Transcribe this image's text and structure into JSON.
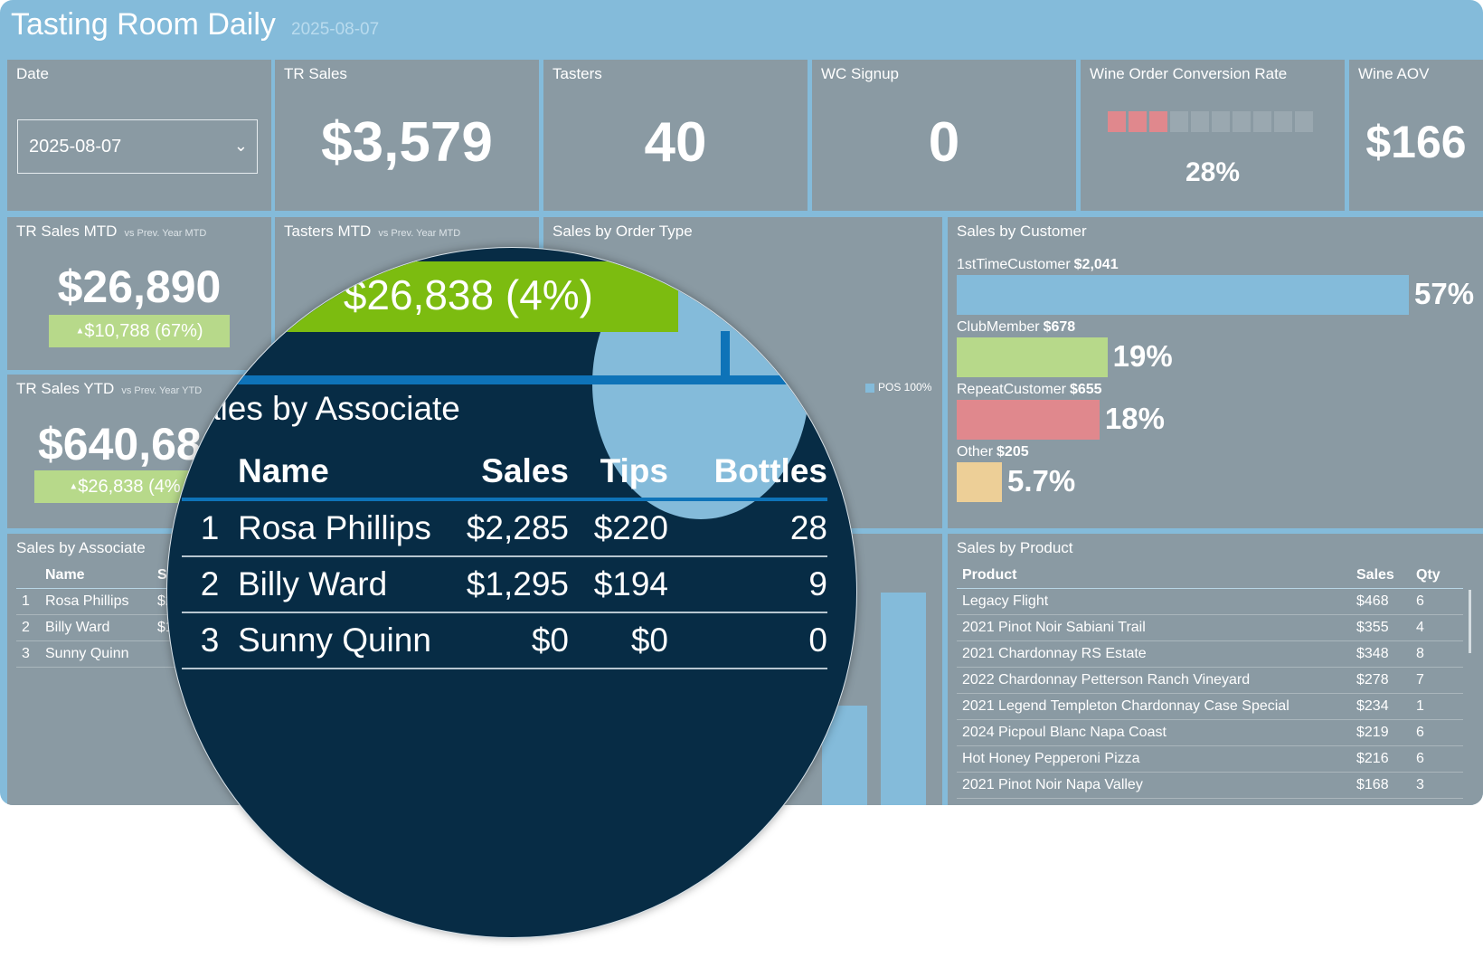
{
  "header": {
    "title": "Tasting Room Daily",
    "date": "2025-08-07"
  },
  "kpis": {
    "date": {
      "title": "Date",
      "value": "2025-08-07"
    },
    "tr_sales": {
      "title": "TR Sales",
      "value": "$3,579"
    },
    "tasters": {
      "title": "Tasters",
      "value": "40"
    },
    "wc_signup": {
      "title": "WC Signup",
      "value": "0"
    },
    "conversion": {
      "title": "Wine Order Conversion Rate",
      "value": "28%",
      "fraction": 0.28,
      "segments": 10,
      "filled": 3
    },
    "aov": {
      "title": "Wine AOV",
      "value": "$166"
    }
  },
  "mtd": {
    "sales": {
      "title": "TR Sales MTD",
      "subtitle": "vs Prev. Year MTD",
      "value": "$26,890",
      "delta": "$10,788 (67%)"
    },
    "tasters": {
      "title": "Tasters MTD",
      "subtitle": "vs Prev. Year MTD"
    }
  },
  "ytd": {
    "title": "TR Sales YTD",
    "subtitle": "vs Prev. Year YTD",
    "value": "$640,68",
    "delta": "$26,838 (4%"
  },
  "order_type": {
    "title": "Sales by Order Type",
    "legend": "POS 100%"
  },
  "customer": {
    "title": "Sales by Customer",
    "items": [
      {
        "name": "1stTimeCustomer",
        "amount": "$2,041",
        "pct": "57%",
        "color": "#84bbda"
      },
      {
        "name": "ClubMember",
        "amount": "$678",
        "pct": "19%",
        "color": "#b7d98a"
      },
      {
        "name": "RepeatCustomer",
        "amount": "$655",
        "pct": "18%",
        "color": "#e0888d"
      },
      {
        "name": "Other",
        "amount": "$205",
        "pct": "5.7%",
        "color": "#edcf97"
      }
    ]
  },
  "associate": {
    "title": "Sales by Associate",
    "col_name": "Name",
    "col_sales": "Sa",
    "rows": [
      {
        "rank": "1",
        "name": "Rosa Phillips",
        "sales": "$2"
      },
      {
        "rank": "2",
        "name": "Billy Ward",
        "sales": "$1"
      },
      {
        "rank": "3",
        "name": "Sunny Quinn",
        "sales": ""
      }
    ]
  },
  "product": {
    "title": "Sales by Product",
    "cols": {
      "product": "Product",
      "sales": "Sales",
      "qty": "Qty"
    },
    "rows": [
      {
        "product": "Legacy Flight",
        "sales": "$468",
        "qty": "6"
      },
      {
        "product": "2021 Pinot Noir Sabiani Trail",
        "sales": "$355",
        "qty": "4"
      },
      {
        "product": "2021 Chardonnay RS Estate",
        "sales": "$348",
        "qty": "8"
      },
      {
        "product": "2022 Chardonnay Petterson Ranch Vineyard",
        "sales": "$278",
        "qty": "7"
      },
      {
        "product": "2021 Legend Templeton Chardonnay Case Special",
        "sales": "$234",
        "qty": "1"
      },
      {
        "product": "2024 Picpoul Blanc Napa Coast",
        "sales": "$219",
        "qty": "6"
      },
      {
        "product": "Hot Honey Pepperoni Pizza",
        "sales": "$216",
        "qty": "6"
      },
      {
        "product": "2021 Pinot Noir Napa Valley",
        "sales": "$168",
        "qty": "3"
      }
    ]
  },
  "magnifier": {
    "banner": "$26,838 (4%)",
    "title": "ales by Associate",
    "cols": {
      "name": "Name",
      "sales": "Sales",
      "tips": "Tips",
      "bottles": "Bottles"
    },
    "rows": [
      {
        "rank": "1",
        "name": "Rosa Phillips",
        "sales": "$2,285",
        "tips": "$220",
        "bottles": "28"
      },
      {
        "rank": "2",
        "name": "Billy Ward",
        "sales": "$1,295",
        "tips": "$194",
        "bottles": "9"
      },
      {
        "rank": "3",
        "name": "Sunny Quinn",
        "sales": "$0",
        "tips": "$0",
        "bottles": "0"
      }
    ]
  }
}
